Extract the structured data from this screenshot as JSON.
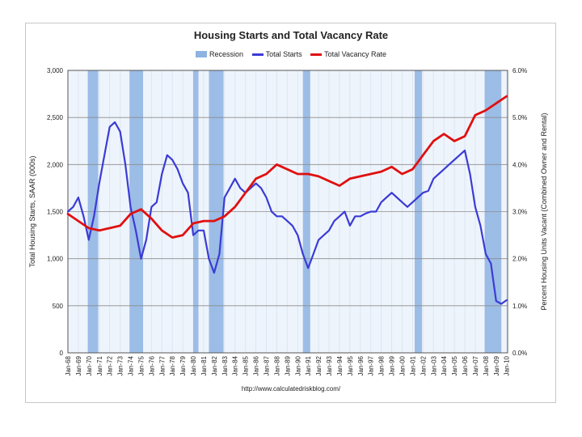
{
  "chart_data": {
    "type": "line",
    "title": "Housing Starts and Total Vacancy Rate",
    "legend": [
      "Recession",
      "Total Starts",
      "Total Vacancy Rate"
    ],
    "legend_placement": "top-center",
    "ylabel_left": "Total Housing Starts, SAAR (000s)",
    "ylabel_right": "Percent Housing Units Vacant (Combined Owner and Rental)",
    "xlabel": "",
    "source": "http://www.calculatedriskblog.com/",
    "ylim_left": [
      0,
      3000
    ],
    "ylim_right": [
      0,
      6
    ],
    "xlim": [
      1968.0,
      2010.1
    ],
    "grid": true,
    "left_ticks": [
      "0",
      "500",
      "1,000",
      "1,500",
      "2,000",
      "2,500",
      "3,000"
    ],
    "right_ticks": [
      "0.0%",
      "1.0%",
      "2.0%",
      "3.0%",
      "4.0%",
      "5.0%",
      "6.0%"
    ],
    "x_tick_labels": [
      "Jan-68",
      "Jan-69",
      "Jan-70",
      "Jan-71",
      "Jan-72",
      "Jan-73",
      "Jan-74",
      "Jan-75",
      "Jan-76",
      "Jan-77",
      "Jan-78",
      "Jan-79",
      "Jan-80",
      "Jan-81",
      "Jan-82",
      "Jan-83",
      "Jan-84",
      "Jan-85",
      "Jan-86",
      "Jan-87",
      "Jan-88",
      "Jan-89",
      "Jan-90",
      "Jan-91",
      "Jan-92",
      "Jan-93",
      "Jan-94",
      "Jan-95",
      "Jan-96",
      "Jan-97",
      "Jan-98",
      "Jan-99",
      "Jan-00",
      "Jan-01",
      "Jan-02",
      "Jan-03",
      "Jan-04",
      "Jan-05",
      "Jan-06",
      "Jan-07",
      "Jan-08",
      "Jan-09",
      "Jan-10"
    ],
    "recessions": [
      [
        1969.9,
        1970.9
      ],
      [
        1973.9,
        1975.2
      ],
      [
        1980.0,
        1980.5
      ],
      [
        1981.5,
        1982.9
      ],
      [
        1990.5,
        1991.2
      ],
      [
        2001.2,
        2001.9
      ],
      [
        2007.9,
        2009.5
      ]
    ],
    "series": [
      {
        "name": "Total Starts",
        "color": "#3b3bd6",
        "x": [
          1968.0,
          1968.5,
          1969.0,
          1969.5,
          1970.0,
          1970.5,
          1971.0,
          1971.5,
          1972.0,
          1972.5,
          1973.0,
          1973.5,
          1974.0,
          1974.5,
          1975.0,
          1975.5,
          1976.0,
          1976.5,
          1977.0,
          1977.5,
          1978.0,
          1978.5,
          1979.0,
          1979.5,
          1980.0,
          1980.5,
          1981.0,
          1981.5,
          1982.0,
          1982.5,
          1983.0,
          1983.5,
          1984.0,
          1984.5,
          1985.0,
          1985.5,
          1986.0,
          1986.5,
          1987.0,
          1987.5,
          1988.0,
          1988.5,
          1989.0,
          1989.5,
          1990.0,
          1990.5,
          1991.0,
          1991.5,
          1992.0,
          1992.5,
          1993.0,
          1993.5,
          1994.0,
          1994.5,
          1995.0,
          1995.5,
          1996.0,
          1996.5,
          1997.0,
          1997.5,
          1998.0,
          1998.5,
          1999.0,
          1999.5,
          2000.0,
          2000.5,
          2001.0,
          2001.5,
          2002.0,
          2002.5,
          2003.0,
          2003.5,
          2004.0,
          2004.5,
          2005.0,
          2005.5,
          2006.0,
          2006.5,
          2007.0,
          2007.5,
          2008.0,
          2008.5,
          2009.0,
          2009.5,
          2010.0
        ],
        "y": [
          1500,
          1550,
          1650,
          1450,
          1200,
          1450,
          1800,
          2100,
          2400,
          2450,
          2350,
          2000,
          1550,
          1300,
          1000,
          1200,
          1550,
          1600,
          1900,
          2100,
          2050,
          1950,
          1800,
          1700,
          1250,
          1300,
          1300,
          1000,
          850,
          1050,
          1650,
          1750,
          1850,
          1750,
          1700,
          1750,
          1800,
          1750,
          1650,
          1500,
          1450,
          1450,
          1400,
          1350,
          1250,
          1050,
          900,
          1050,
          1200,
          1250,
          1300,
          1400,
          1450,
          1500,
          1350,
          1450,
          1450,
          1480,
          1500,
          1500,
          1600,
          1650,
          1700,
          1650,
          1600,
          1550,
          1600,
          1650,
          1700,
          1720,
          1850,
          1900,
          1950,
          2000,
          2050,
          2100,
          2150,
          1900,
          1550,
          1350,
          1050,
          950,
          550,
          520,
          560
        ]
      },
      {
        "name": "Total Vacancy Rate",
        "color": "#e01010",
        "x": [
          1968.0,
          1969.0,
          1970.0,
          1971.0,
          1972.0,
          1973.0,
          1974.0,
          1975.0,
          1976.0,
          1977.0,
          1978.0,
          1979.0,
          1980.0,
          1981.0,
          1982.0,
          1983.0,
          1984.0,
          1985.0,
          1986.0,
          1987.0,
          1988.0,
          1989.0,
          1990.0,
          1991.0,
          1992.0,
          1993.0,
          1994.0,
          1995.0,
          1996.0,
          1997.0,
          1998.0,
          1999.0,
          2000.0,
          2001.0,
          2002.0,
          2003.0,
          2004.0,
          2005.0,
          2006.0,
          2007.0,
          2008.0,
          2009.0,
          2010.0
        ],
        "y": [
          2.95,
          2.8,
          2.65,
          2.6,
          2.65,
          2.7,
          2.95,
          3.05,
          2.85,
          2.6,
          2.45,
          2.5,
          2.75,
          2.8,
          2.8,
          2.9,
          3.1,
          3.4,
          3.7,
          3.8,
          4.0,
          3.9,
          3.8,
          3.8,
          3.75,
          3.65,
          3.55,
          3.7,
          3.75,
          3.8,
          3.85,
          3.95,
          3.8,
          3.9,
          4.2,
          4.5,
          4.65,
          4.5,
          4.6,
          5.05,
          5.15,
          5.3,
          5.45
        ]
      }
    ]
  }
}
